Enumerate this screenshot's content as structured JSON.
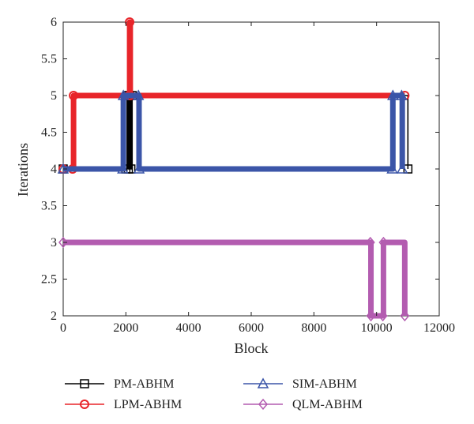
{
  "chart_data": {
    "type": "line",
    "xlabel": "Block",
    "ylabel": "Iterations",
    "xlim": [
      0,
      12000
    ],
    "ylim": [
      2,
      6
    ],
    "xticks": [
      "0",
      "2000",
      "4000",
      "6000",
      "8000",
      "10000",
      "12000"
    ],
    "yticks": [
      "2",
      "2.5",
      "3",
      "3.5",
      "4",
      "4.5",
      "5",
      "5.5",
      "6"
    ],
    "grid": false,
    "legend_position": "bottom",
    "series": [
      {
        "name": "PM-ABHM",
        "color": "#000000",
        "marker": "square",
        "x": [
          0,
          2000,
          2040,
          2080,
          2120,
          2160,
          2200,
          11000
        ],
        "y": [
          4,
          4,
          5,
          4,
          5,
          4,
          5,
          4
        ],
        "note_values": "runs mostly at 4 with several spikes to 5 near block 2000-2200"
      },
      {
        "name": "LPM-ABHM",
        "color": "#e8252a",
        "marker": "circle",
        "x": [
          0,
          300,
          330,
          2100,
          2120,
          2140,
          10900
        ],
        "y": [
          4,
          4,
          5,
          5,
          6,
          5,
          5
        ]
      },
      {
        "name": "SIM-ABHM",
        "color": "#3b55a8",
        "marker": "triangle",
        "x": [
          0,
          1900,
          1920,
          2400,
          2420,
          10500,
          10520,
          10800,
          10820
        ],
        "y": [
          4,
          4,
          5,
          5,
          4,
          4,
          5,
          5,
          4
        ]
      },
      {
        "name": "QLM-ABHM",
        "color": "#b35cb0",
        "marker": "diamond",
        "x": [
          0,
          9800,
          9820,
          10200,
          10220,
          10900
        ],
        "y": [
          3,
          3,
          2,
          2,
          3,
          2
        ]
      }
    ]
  },
  "legend": {
    "items": [
      {
        "label": "PM-ABHM",
        "color": "#000000",
        "marker": "square"
      },
      {
        "label": "SIM-ABHM",
        "color": "#3b55a8",
        "marker": "triangle"
      },
      {
        "label": "LPM-ABHM",
        "color": "#e8252a",
        "marker": "circle"
      },
      {
        "label": "QLM-ABHM",
        "color": "#b35cb0",
        "marker": "diamond"
      }
    ]
  }
}
